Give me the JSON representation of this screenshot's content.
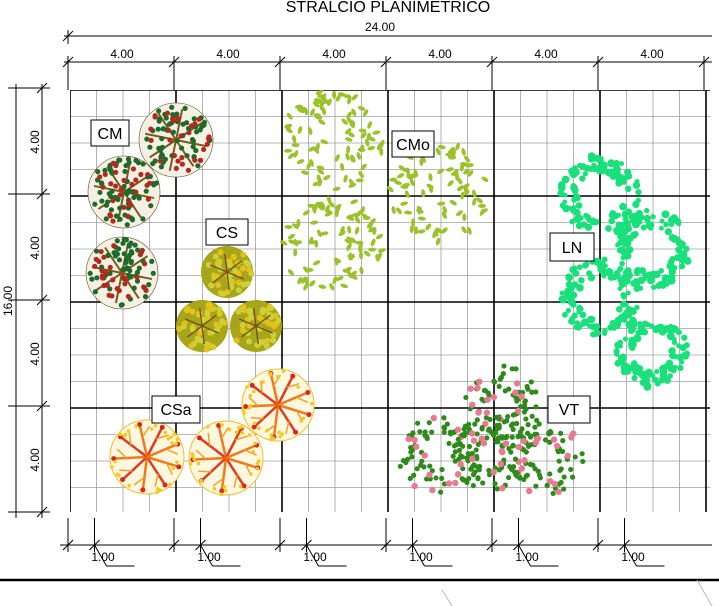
{
  "title": "STRALCIO PLANIMETRICO",
  "total_width_label": "24.00",
  "column_labels": [
    "4.00",
    "4.00",
    "4.00",
    "4.00",
    "4.00",
    "4.00"
  ],
  "total_height_label": "16.00",
  "row_labels": [
    "4.00",
    "4.00",
    "4.00",
    "4.00"
  ],
  "unit_labels": [
    "1.00",
    "1.00",
    "1.00",
    "1.00",
    "1.00",
    "1.00"
  ],
  "plants": [
    {
      "code": "CM",
      "color": "#b5281d"
    },
    {
      "code": "CMo",
      "color": "#9cc22b"
    },
    {
      "code": "CS",
      "color": "#e3c21c"
    },
    {
      "code": "LN",
      "color": "#19e07a"
    },
    {
      "code": "CSa",
      "color": "#ef7a1a"
    },
    {
      "code": "VT",
      "color": "#e87b91"
    }
  ]
}
